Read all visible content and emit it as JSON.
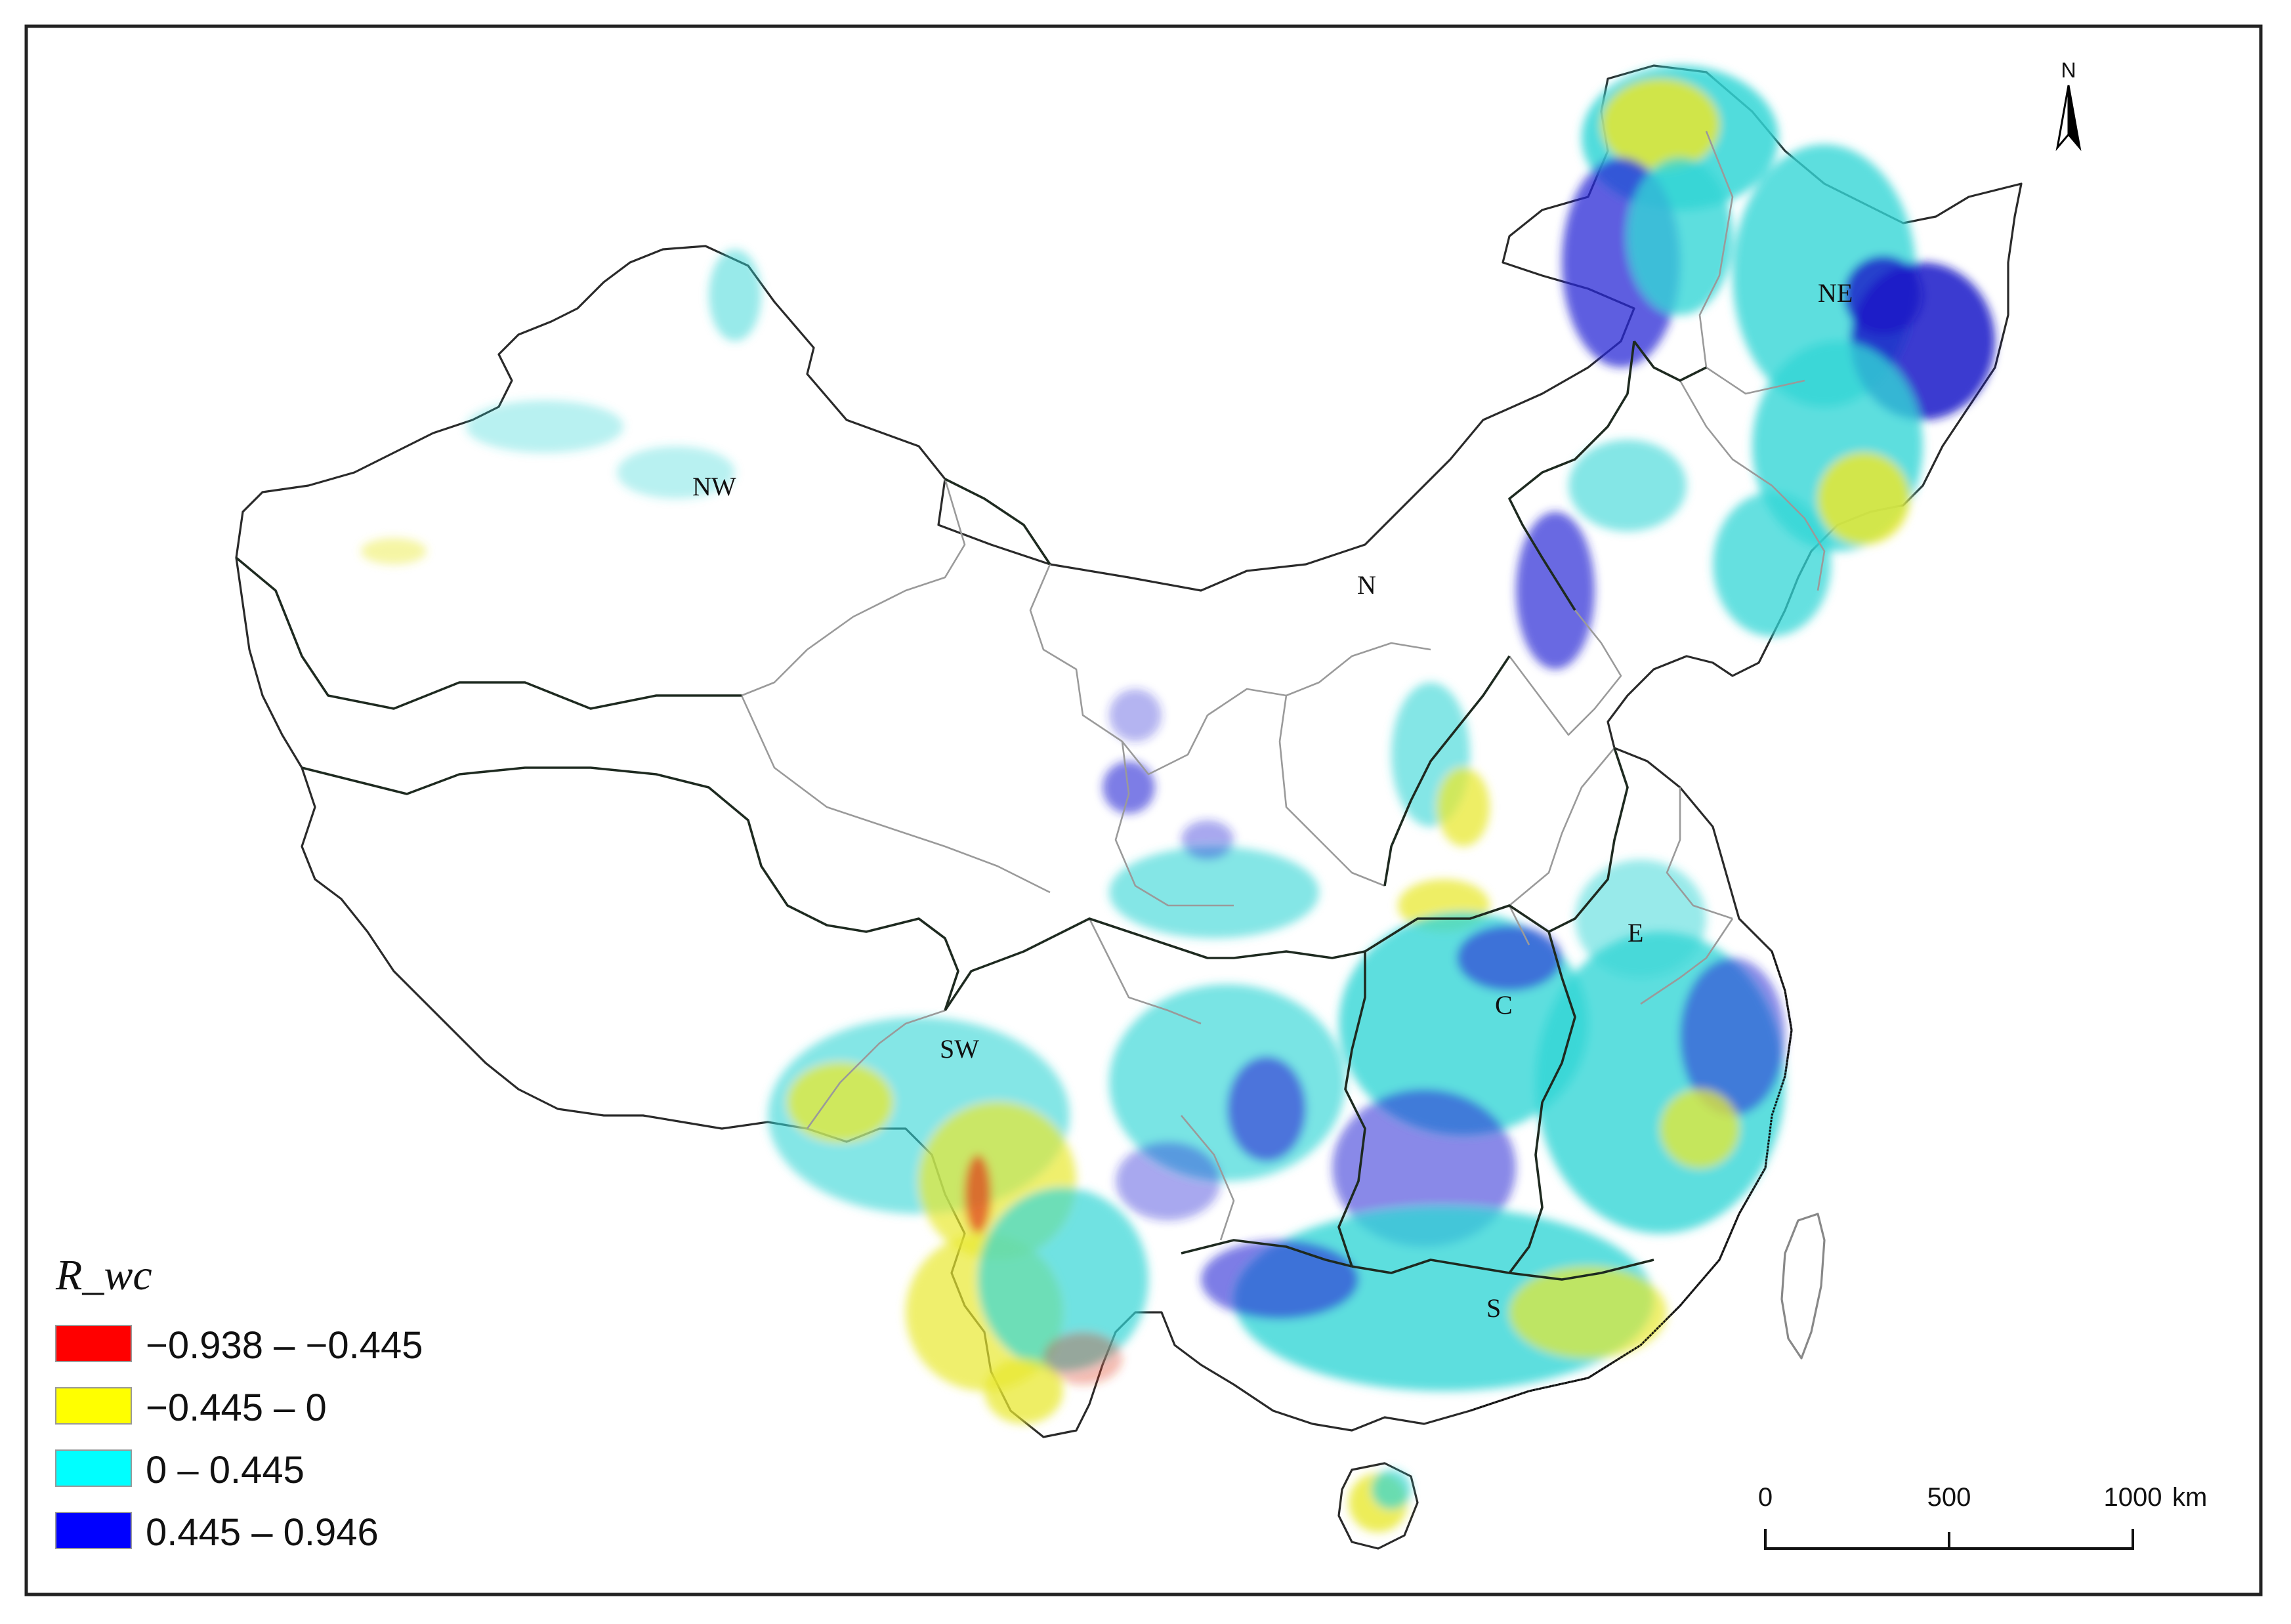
{
  "legend": {
    "title": "R_wc",
    "items": [
      {
        "label": "−0.938 – −0.445",
        "color": "#ff0000"
      },
      {
        "label": "−0.445 – 0",
        "color": "#ffff00"
      },
      {
        "label": "0 – 0.445",
        "color": "#00ffff"
      },
      {
        "label": "0.445 – 0.946",
        "color": "#0000ff"
      }
    ]
  },
  "regions": {
    "nw": "NW",
    "ne": "NE",
    "n": "N",
    "e": "E",
    "c": "C",
    "sw": "SW",
    "s": "S"
  },
  "north_arrow": {
    "label": "N"
  },
  "scale_bar": {
    "tick0": "0",
    "tick1": "500",
    "tick2": "1000",
    "unit": "km"
  },
  "icons": {
    "north": "north-arrow-icon"
  }
}
